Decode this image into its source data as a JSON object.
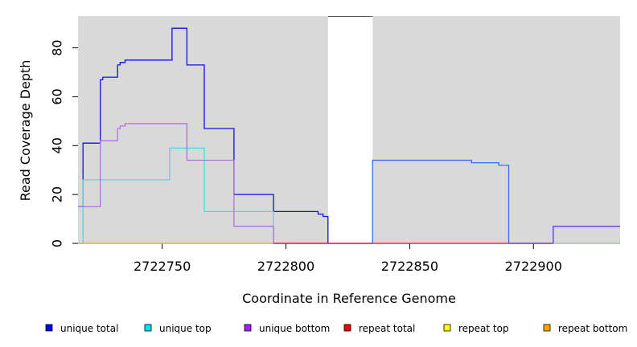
{
  "chart_data": {
    "type": "line",
    "xlabel": "Coordinate in Reference Genome",
    "ylabel": "Read Coverage Depth",
    "xlim": [
      2722716,
      2722935
    ],
    "ylim": [
      0,
      93
    ],
    "x_ticks": [
      2722750,
      2722800,
      2722850,
      2722900
    ],
    "y_ticks": [
      0,
      20,
      40,
      60,
      80
    ],
    "gap_region": [
      2722817,
      2722835
    ],
    "panel_color": "#d9d9d9",
    "legend_position": "bottom",
    "series": [
      {
        "name": "unique total",
        "color": "#1010e0",
        "points": [
          [
            2722716,
            15
          ],
          [
            2722718,
            15
          ],
          [
            2722718,
            41
          ],
          [
            2722725,
            41
          ],
          [
            2722725,
            67
          ],
          [
            2722726,
            67
          ],
          [
            2722726,
            68
          ],
          [
            2722732,
            68
          ],
          [
            2722732,
            73
          ],
          [
            2722733,
            73
          ],
          [
            2722733,
            74
          ],
          [
            2722735,
            74
          ],
          [
            2722735,
            75
          ],
          [
            2722754,
            75
          ],
          [
            2722754,
            88
          ],
          [
            2722760,
            88
          ],
          [
            2722760,
            73
          ],
          [
            2722767,
            73
          ],
          [
            2722767,
            47
          ],
          [
            2722779,
            47
          ],
          [
            2722779,
            20
          ],
          [
            2722795,
            20
          ],
          [
            2722795,
            13
          ],
          [
            2722813,
            13
          ],
          [
            2722813,
            12
          ],
          [
            2722815,
            12
          ],
          [
            2722815,
            11
          ],
          [
            2722817,
            11
          ],
          [
            2722817,
            0
          ],
          [
            2722835,
            0
          ]
        ]
      },
      {
        "name": "unique top",
        "color": "#40e0e0",
        "points": [
          [
            2722716,
            0
          ],
          [
            2722718,
            0
          ],
          [
            2722718,
            26
          ],
          [
            2722753,
            26
          ],
          [
            2722753,
            39
          ],
          [
            2722767,
            39
          ],
          [
            2722767,
            13
          ],
          [
            2722795,
            13
          ],
          [
            2722795,
            0
          ],
          [
            2722817,
            0
          ]
        ]
      },
      {
        "name": "unique bottom",
        "color": "#b070e0",
        "points": [
          [
            2722716,
            15
          ],
          [
            2722725,
            15
          ],
          [
            2722725,
            42
          ],
          [
            2722732,
            42
          ],
          [
            2722732,
            47
          ],
          [
            2722733,
            47
          ],
          [
            2722733,
            48
          ],
          [
            2722735,
            48
          ],
          [
            2722735,
            49
          ],
          [
            2722760,
            49
          ],
          [
            2722760,
            34
          ],
          [
            2722779,
            34
          ],
          [
            2722779,
            7
          ],
          [
            2722795,
            7
          ],
          [
            2722795,
            0
          ],
          [
            2722817,
            0
          ]
        ]
      },
      {
        "name": "repeat total",
        "color": "#ff0000",
        "points": [
          [
            2722795,
            0
          ],
          [
            2722817,
            0
          ],
          [
            2722835,
            0
          ],
          [
            2722935,
            0
          ]
        ]
      },
      {
        "name": "repeat top",
        "color": "#ffff00",
        "points": []
      },
      {
        "name": "repeat bottom",
        "color": "#f5a000",
        "points": [
          [
            2722716,
            0
          ],
          [
            2722795,
            0
          ]
        ]
      },
      {
        "name": "unique total (right)",
        "color": "#3070f0",
        "points": [
          [
            2722835,
            0
          ],
          [
            2722835,
            34
          ],
          [
            2722875,
            34
          ],
          [
            2722875,
            33
          ],
          [
            2722886,
            33
          ],
          [
            2722886,
            32
          ],
          [
            2722890,
            32
          ],
          [
            2722890,
            0
          ],
          [
            2722908,
            0
          ],
          [
            2722908,
            7
          ],
          [
            2722935,
            7
          ]
        ]
      },
      {
        "name": "unique bottom (right)",
        "color": "#7040e0",
        "points": [
          [
            2722890,
            0
          ],
          [
            2722908,
            0
          ],
          [
            2722908,
            7
          ],
          [
            2722935,
            7
          ]
        ]
      },
      {
        "name": "unique top (right)",
        "color": "#90e0b0",
        "points": [
          [
            2722908,
            0
          ],
          [
            2722935,
            0
          ]
        ]
      }
    ],
    "legend": [
      {
        "label": "unique total",
        "color": "#0000ee"
      },
      {
        "label": "unique top",
        "color": "#00e5ee"
      },
      {
        "label": "unique bottom",
        "color": "#a020f0"
      },
      {
        "label": "repeat total",
        "color": "#ee0000"
      },
      {
        "label": "repeat top",
        "color": "#ffff00"
      },
      {
        "label": "repeat bottom",
        "color": "#ffa500"
      }
    ]
  }
}
